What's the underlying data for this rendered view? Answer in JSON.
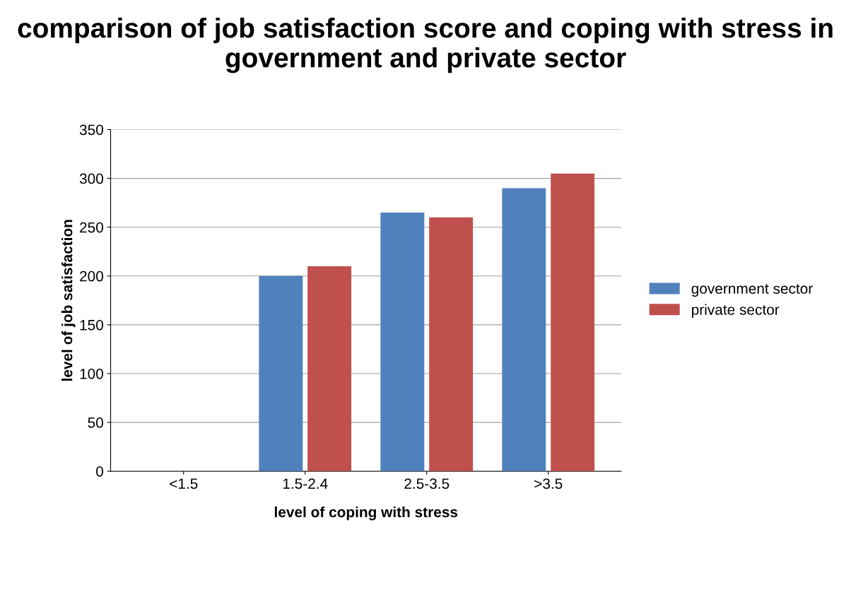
{
  "chart_data": {
    "type": "bar",
    "title": "comparison of job satisfaction score and coping with stress in government and private sector",
    "xlabel": "level of coping with stress",
    "ylabel": "level of job satisfaction",
    "categories": [
      "<1.5",
      "1.5-2.4",
      "2.5-3.5",
      ">3.5"
    ],
    "series": [
      {
        "name": "government sector",
        "color": "#4f81bd",
        "values": [
          0,
          200,
          265,
          290
        ]
      },
      {
        "name": "private sector",
        "color": "#c0504d",
        "values": [
          0,
          210,
          260,
          305
        ]
      }
    ],
    "ylim": [
      0,
      350
    ],
    "yticks": [
      0,
      50,
      100,
      150,
      200,
      250,
      300,
      350
    ],
    "grid": "y",
    "legend": "right"
  }
}
